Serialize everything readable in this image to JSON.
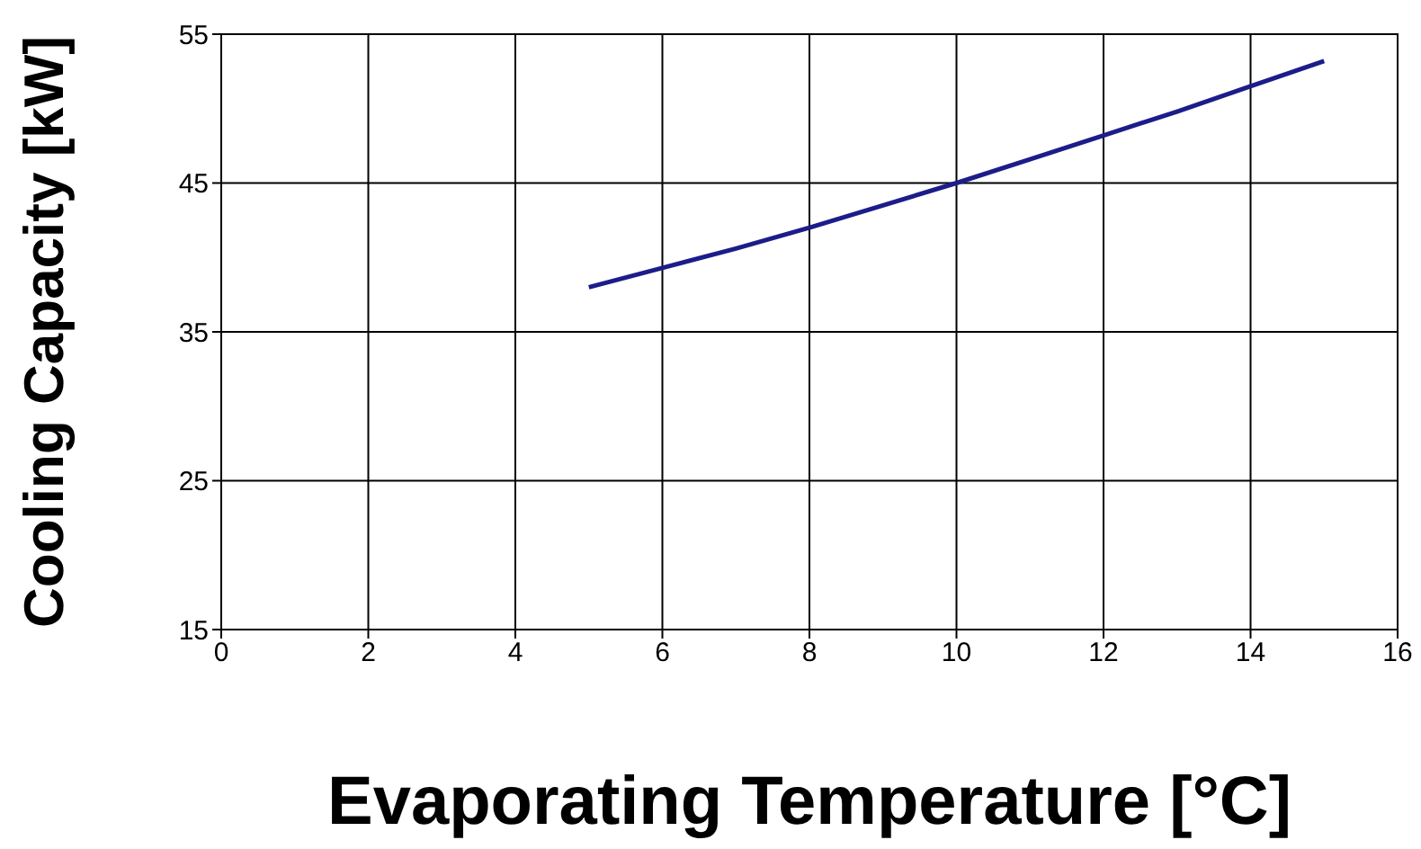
{
  "chart_data": {
    "type": "line",
    "xlabel": "Evaporating Temperature [°C]",
    "ylabel": "Cooling Capacity [kW]",
    "x": [
      5,
      6,
      7,
      8,
      9,
      10,
      11,
      12,
      13,
      14,
      15
    ],
    "series": [
      {
        "color": "#1c1c8a",
        "values": [
          38,
          39.3,
          40.6,
          42,
          43.5,
          45,
          46.6,
          48.2,
          49.8,
          51.5,
          53.2
        ]
      }
    ],
    "xlim": [
      0,
      16
    ],
    "xticks": [
      0,
      2,
      4,
      6,
      8,
      10,
      12,
      14,
      16
    ],
    "ylim": [
      15,
      55
    ],
    "yticks": [
      15,
      25,
      35,
      45,
      55
    ],
    "grid": true,
    "legend": false,
    "marker": "none",
    "line_style": "solid"
  }
}
